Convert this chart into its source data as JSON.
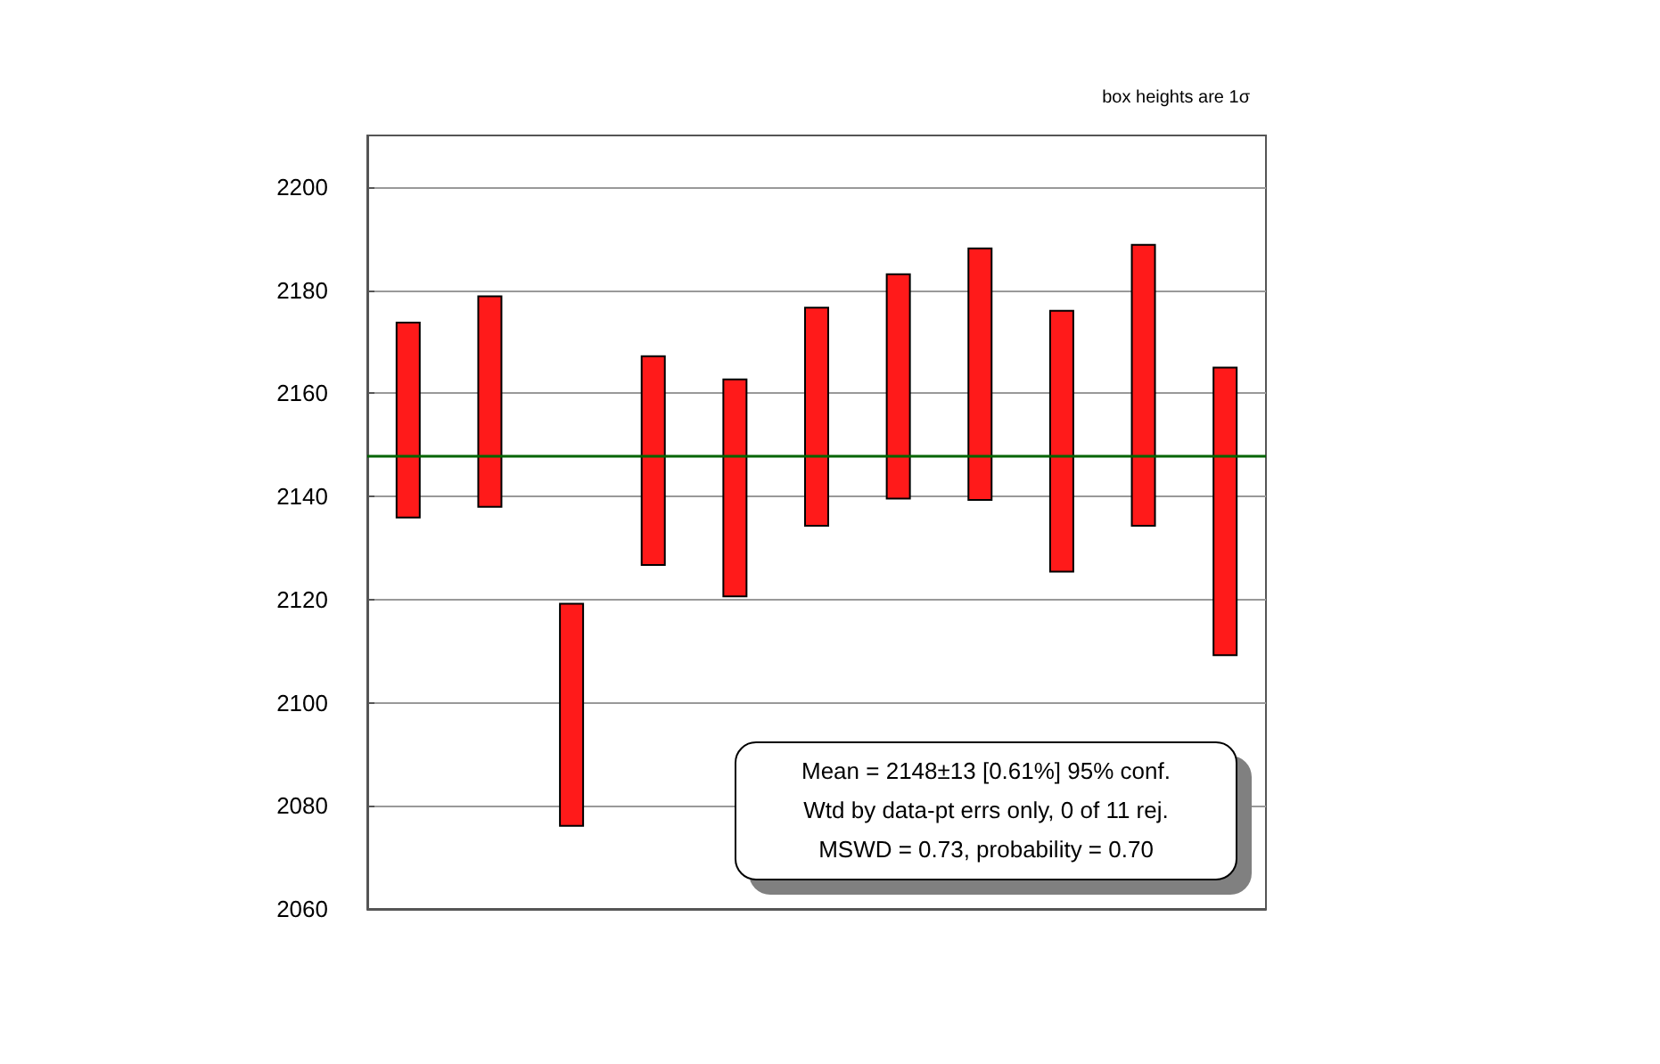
{
  "chart_data": {
    "type": "bar",
    "categories": [
      null,
      null,
      null,
      null,
      null,
      null,
      null,
      null,
      null,
      null,
      null
    ],
    "base": [
      2135.9,
      2138.0,
      2076.1,
      2126.7,
      2120.6,
      2134.3,
      2139.6,
      2139.3,
      2125.4,
      2134.3,
      2109.2
    ],
    "values": [
      37.8,
      40.8,
      43.1,
      40.5,
      42.1,
      42.3,
      43.5,
      48.8,
      50.6,
      54.5,
      55.8
    ],
    "color": "#ff1a1a",
    "ylim": [
      2060,
      2210
    ],
    "yticks": [
      2060,
      2080,
      2100,
      2120,
      2140,
      2160,
      2180,
      2200
    ],
    "grid": "y",
    "ref_lines": [
      {
        "axis": "y",
        "value": 2148,
        "color": "#006400"
      }
    ],
    "annotations": [
      "box heights are 1σ",
      "Mean = 2148±13  [0.61%]  95% conf.",
      "Wtd by data-pt errs only, 0 of 11 rej.",
      "MSWD = 0.73, probability = 0.70"
    ]
  }
}
